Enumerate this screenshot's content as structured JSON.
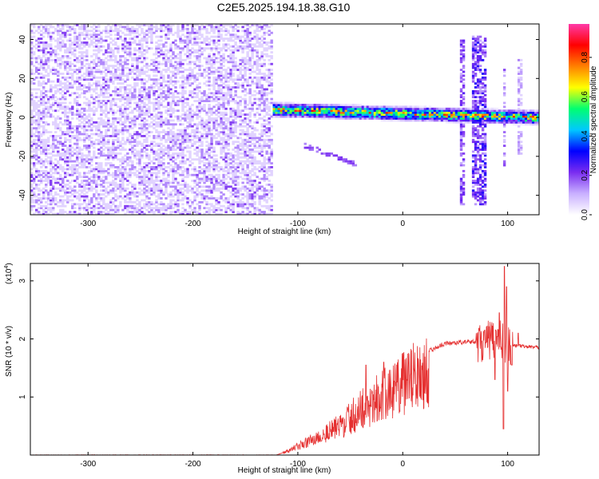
{
  "title": "C2E5.2025.194.18.38.G10",
  "chart_data": [
    {
      "type": "heatmap",
      "xlabel": "Height of straight line (km)",
      "ylabel": "Frequency (Hz)",
      "xlim": [
        -355,
        130
      ],
      "ylim": [
        -50,
        48
      ],
      "x_ticks": [
        -300,
        -200,
        -100,
        0,
        100
      ],
      "y_ticks": [
        -40,
        -20,
        0,
        20,
        40
      ],
      "colorbar": {
        "label": "Normalized spectral amplitude",
        "range": [
          0,
          0.97
        ],
        "ticks": [
          0,
          0.2,
          0.4,
          0.6,
          0.8
        ],
        "tick_labels": [
          "0.0",
          "0.2",
          "0.4",
          "0.6",
          "0.8"
        ],
        "colormap": [
          "#ffffff",
          "#c9b0ff",
          "#7a2df0",
          "#0000ff",
          "#00c8ff",
          "#00ff70",
          "#ffff00",
          "#ff8000",
          "#ff0000",
          "#ff3aa8"
        ]
      },
      "regions": [
        {
          "name": "noise",
          "x": [
            -355,
            -125
          ],
          "y": [
            -50,
            48
          ],
          "amplitude": 0.15
        },
        {
          "name": "signal band",
          "x": [
            -125,
            130
          ],
          "y_center": [
            4,
            0
          ],
          "halfwidth": 4,
          "amplitude": 0.6
        },
        {
          "name": "diagonal echo",
          "x": [
            -95,
            -45
          ],
          "y": [
            -14,
            -24
          ],
          "amplitude": 0.2
        },
        {
          "name": "burst",
          "x": [
            55,
            60
          ],
          "y": [
            -45,
            40
          ],
          "amplitude": 0.25
        },
        {
          "name": "burst",
          "x": [
            67,
            80
          ],
          "y": [
            -45,
            42
          ],
          "amplitude": 0.3
        },
        {
          "name": "burst",
          "x": [
            95,
            99
          ],
          "y": [
            -25,
            25
          ],
          "amplitude": 0.2
        },
        {
          "name": "burst",
          "x": [
            110,
            113
          ],
          "y": [
            -20,
            30
          ],
          "amplitude": 0.15
        }
      ]
    },
    {
      "type": "line",
      "xlabel": "Height of straight line (km)",
      "ylabel": "SNR (10 * v/v)",
      "y_multiplier": "(x10",
      "y_multiplier_exp": "4",
      "y_multiplier_close": ")",
      "xlim": [
        -355,
        130
      ],
      "ylim": [
        0,
        3.3
      ],
      "x_ticks": [
        -300,
        -200,
        -100,
        0,
        100
      ],
      "y_ticks": [
        1,
        2,
        3
      ],
      "color": "#e53030",
      "envelope": [
        [
          -355,
          0.0
        ],
        [
          -120,
          0.0
        ],
        [
          -110,
          0.08
        ],
        [
          -100,
          0.18
        ],
        [
          -80,
          0.38
        ],
        [
          -60,
          0.6
        ],
        [
          -40,
          0.95
        ],
        [
          -20,
          1.22
        ],
        [
          0,
          1.48
        ],
        [
          20,
          1.75
        ],
        [
          40,
          1.92
        ],
        [
          60,
          1.95
        ],
        [
          75,
          1.95
        ],
        [
          90,
          2.0
        ],
        [
          100,
          1.9
        ],
        [
          110,
          1.88
        ],
        [
          130,
          1.85
        ]
      ],
      "peaks": [
        [
          -35,
          1.55
        ],
        [
          -18,
          1.6
        ],
        [
          78,
          2.15
        ],
        [
          92,
          2.45
        ],
        [
          97,
          3.25
        ],
        [
          99,
          2.9
        ],
        [
          110,
          2.1
        ]
      ],
      "dips": [
        [
          88,
          1.3
        ],
        [
          96,
          0.45
        ],
        [
          100,
          1.1
        ],
        [
          104,
          1.55
        ]
      ]
    }
  ]
}
